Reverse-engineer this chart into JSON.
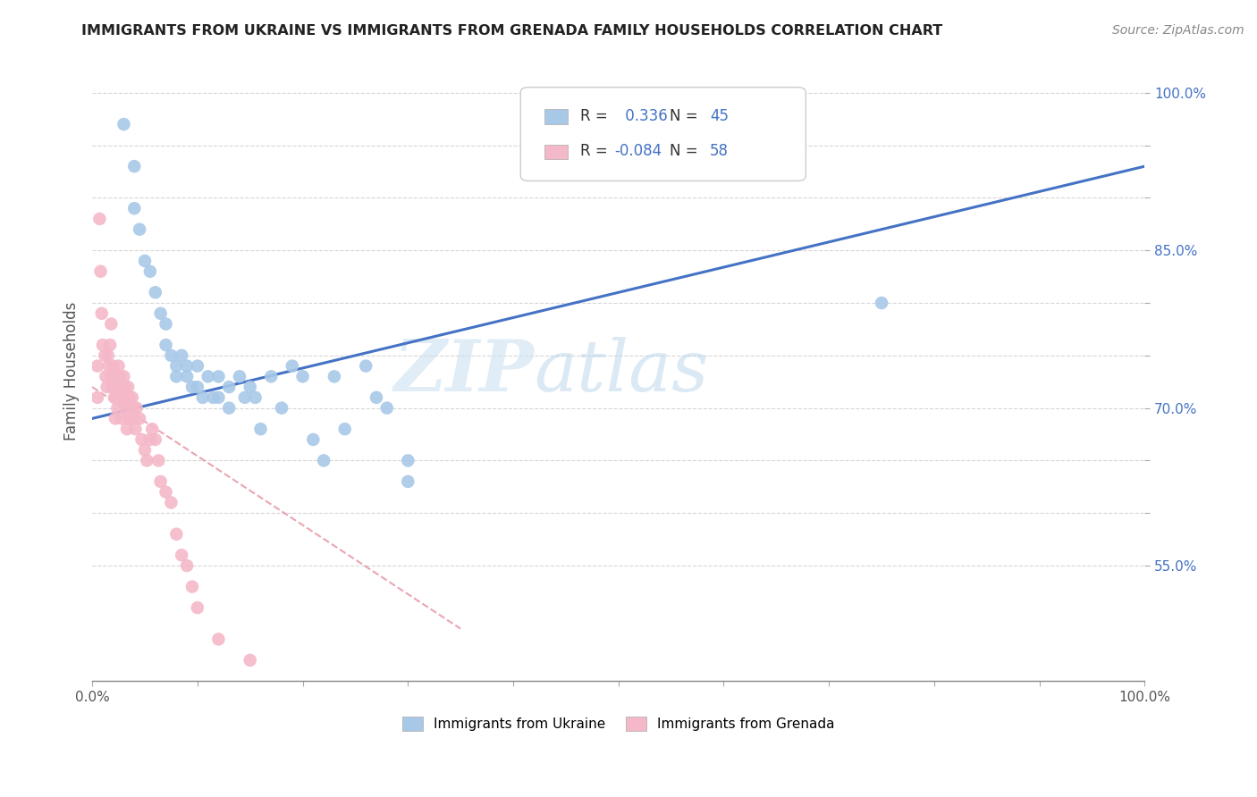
{
  "title": "IMMIGRANTS FROM UKRAINE VS IMMIGRANTS FROM GRENADA FAMILY HOUSEHOLDS CORRELATION CHART",
  "source": "Source: ZipAtlas.com",
  "ylabel": "Family Households",
  "legend_labels": [
    "Immigrants from Ukraine",
    "Immigrants from Grenada"
  ],
  "r_ukraine": 0.336,
  "n_ukraine": 45,
  "r_grenada": -0.084,
  "n_grenada": 58,
  "ukraine_color": "#a8c8e8",
  "grenada_color": "#f4b8c8",
  "ukraine_line_color": "#4472c4",
  "grenada_line_color": "#e08090",
  "text_color": "#4472c4",
  "watermark_zip": "ZIP",
  "watermark_atlas": "atlas",
  "xlim": [
    0.0,
    1.0
  ],
  "ylim": [
    0.44,
    1.03
  ],
  "yticks": [
    0.55,
    0.6,
    0.65,
    0.7,
    0.75,
    0.8,
    0.85,
    0.9,
    0.95,
    1.0
  ],
  "ytick_labels": [
    "55.0%",
    "",
    "",
    "70.0%",
    "",
    "",
    "85.0%",
    "",
    "",
    "100.0%"
  ],
  "xticks": [
    0.0,
    0.1,
    0.2,
    0.3,
    0.4,
    0.5,
    0.6,
    0.7,
    0.8,
    0.9,
    1.0
  ],
  "xtick_labels": [
    "0.0%",
    "",
    "",
    "",
    "",
    "",
    "",
    "",
    "",
    "",
    "100.0%"
  ],
  "ukraine_x": [
    0.03,
    0.04,
    0.04,
    0.045,
    0.05,
    0.055,
    0.06,
    0.065,
    0.07,
    0.07,
    0.075,
    0.08,
    0.08,
    0.085,
    0.09,
    0.09,
    0.095,
    0.1,
    0.1,
    0.105,
    0.11,
    0.115,
    0.12,
    0.12,
    0.13,
    0.13,
    0.14,
    0.145,
    0.15,
    0.155,
    0.16,
    0.17,
    0.18,
    0.19,
    0.2,
    0.21,
    0.22,
    0.23,
    0.24,
    0.26,
    0.27,
    0.28,
    0.3,
    0.75,
    0.3
  ],
  "ukraine_y": [
    0.97,
    0.93,
    0.89,
    0.87,
    0.84,
    0.83,
    0.81,
    0.79,
    0.78,
    0.76,
    0.75,
    0.74,
    0.73,
    0.75,
    0.74,
    0.73,
    0.72,
    0.74,
    0.72,
    0.71,
    0.73,
    0.71,
    0.73,
    0.71,
    0.72,
    0.7,
    0.73,
    0.71,
    0.72,
    0.71,
    0.68,
    0.73,
    0.7,
    0.74,
    0.73,
    0.67,
    0.65,
    0.73,
    0.68,
    0.74,
    0.71,
    0.7,
    0.65,
    0.8,
    0.63
  ],
  "grenada_x": [
    0.005,
    0.005,
    0.007,
    0.008,
    0.009,
    0.01,
    0.012,
    0.013,
    0.014,
    0.015,
    0.016,
    0.017,
    0.018,
    0.018,
    0.019,
    0.02,
    0.021,
    0.022,
    0.022,
    0.023,
    0.024,
    0.025,
    0.025,
    0.026,
    0.027,
    0.028,
    0.03,
    0.03,
    0.031,
    0.032,
    0.033,
    0.034,
    0.035,
    0.035,
    0.036,
    0.038,
    0.039,
    0.04,
    0.041,
    0.042,
    0.045,
    0.047,
    0.05,
    0.052,
    0.055,
    0.057,
    0.06,
    0.063,
    0.065,
    0.07,
    0.075,
    0.08,
    0.085,
    0.09,
    0.095,
    0.1,
    0.12,
    0.15
  ],
  "grenada_y": [
    0.74,
    0.71,
    0.88,
    0.83,
    0.79,
    0.76,
    0.75,
    0.73,
    0.72,
    0.75,
    0.74,
    0.76,
    0.78,
    0.73,
    0.72,
    0.74,
    0.71,
    0.73,
    0.69,
    0.71,
    0.7,
    0.72,
    0.74,
    0.73,
    0.71,
    0.69,
    0.73,
    0.71,
    0.72,
    0.7,
    0.68,
    0.72,
    0.71,
    0.69,
    0.7,
    0.71,
    0.7,
    0.69,
    0.68,
    0.7,
    0.69,
    0.67,
    0.66,
    0.65,
    0.67,
    0.68,
    0.67,
    0.65,
    0.63,
    0.62,
    0.61,
    0.58,
    0.56,
    0.55,
    0.53,
    0.51,
    0.48,
    0.46
  ],
  "ukraine_line_x": [
    0.0,
    1.0
  ],
  "ukraine_line_y": [
    0.69,
    0.93
  ],
  "grenada_line_x": [
    0.0,
    0.35
  ],
  "grenada_line_y": [
    0.72,
    0.49
  ]
}
